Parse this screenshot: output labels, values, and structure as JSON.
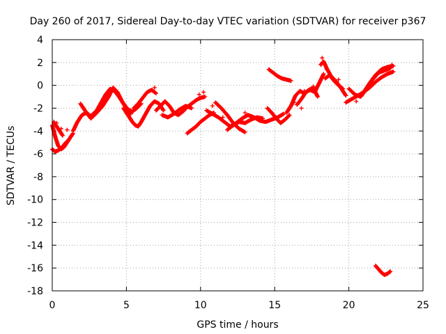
{
  "chart_data": {
    "type": "scatter",
    "title": "Day 260 of 2017, Sidereal Day-to-day VTEC variation (SDTVAR) for receiver p367",
    "xlabel": "GPS time / hours",
    "ylabel": "SDTVAR / TECUs",
    "xlim": [
      0,
      25
    ],
    "ylim": [
      -18,
      4
    ],
    "xticks": [
      0,
      5,
      10,
      15,
      20,
      25
    ],
    "yticks": [
      -18,
      -16,
      -14,
      -12,
      -10,
      -8,
      -6,
      -4,
      -2,
      0,
      2,
      4
    ],
    "grid": true,
    "marker": "+",
    "color": "#ff0000",
    "segments": [
      {
        "x": [
          0.0,
          0.2,
          0.4,
          0.6,
          0.8,
          1.0,
          1.2,
          1.4
        ],
        "y": [
          -3.5,
          -4.5,
          -5.3,
          -5.6,
          -5.4,
          -5.0,
          -4.6,
          -4.2
        ]
      },
      {
        "x": [
          0.0,
          0.2,
          0.4,
          0.6,
          0.8,
          1.0
        ],
        "y": [
          -5.6,
          -5.8,
          -5.7,
          -5.5,
          -5.2,
          -4.9
        ]
      },
      {
        "x": [
          0.1,
          0.3,
          0.5,
          0.7
        ],
        "y": [
          -3.2,
          -3.6,
          -4.0,
          -4.4
        ]
      },
      {
        "x": [
          1.4,
          1.7,
          2.0,
          2.3,
          2.6,
          3.0,
          3.3,
          3.6,
          3.9,
          4.2,
          4.5,
          4.8,
          5.1,
          5.4,
          5.7,
          6.0
        ],
        "y": [
          -4.0,
          -3.2,
          -2.6,
          -2.4,
          -2.7,
          -2.2,
          -1.5,
          -0.8,
          -0.3,
          -0.5,
          -1.0,
          -1.6,
          -2.1,
          -2.3,
          -2.0,
          -1.6
        ]
      },
      {
        "x": [
          1.9,
          2.2,
          2.6,
          3.0,
          3.4,
          3.8,
          4.1,
          4.4,
          4.7,
          5.0,
          5.3
        ],
        "y": [
          -1.6,
          -2.2,
          -2.9,
          -2.4,
          -1.8,
          -1.0,
          -0.2,
          -0.6,
          -1.4,
          -2.0,
          -2.5
        ]
      },
      {
        "x": [
          4.8,
          5.0,
          5.2,
          5.4,
          5.6,
          5.8,
          6.0,
          6.3,
          6.6,
          6.9,
          7.2,
          7.5
        ],
        "y": [
          -2.0,
          -2.4,
          -2.8,
          -3.2,
          -3.5,
          -3.6,
          -3.2,
          -2.5,
          -1.8,
          -1.4,
          -1.6,
          -2.2
        ]
      },
      {
        "x": [
          5.5,
          5.8,
          6.1,
          6.4,
          6.7,
          7.0
        ],
        "y": [
          -2.0,
          -1.6,
          -1.1,
          -0.6,
          -0.4,
          -0.7
        ]
      },
      {
        "x": [
          7.0,
          7.3,
          7.6,
          7.9,
          8.2,
          8.5,
          8.8,
          9.1,
          9.4,
          9.7,
          10.0,
          10.3
        ],
        "y": [
          -2.2,
          -1.8,
          -1.4,
          -1.8,
          -2.4,
          -2.6,
          -2.3,
          -1.9,
          -1.6,
          -1.3,
          -1.1,
          -1.0
        ]
      },
      {
        "x": [
          7.4,
          7.8,
          8.2,
          8.6,
          9.0,
          9.4
        ],
        "y": [
          -2.6,
          -2.8,
          -2.5,
          -2.1,
          -1.8,
          -2.0
        ]
      },
      {
        "x": [
          9.1,
          9.4,
          9.7,
          10.0,
          10.3,
          10.6,
          10.9
        ],
        "y": [
          -4.2,
          -3.9,
          -3.6,
          -3.2,
          -2.9,
          -2.6,
          -2.4
        ]
      },
      {
        "x": [
          10.4,
          10.8,
          11.2,
          11.6,
          12.0,
          12.4,
          12.8,
          13.2,
          13.6,
          14.0,
          14.4,
          14.8,
          15.2,
          15.6
        ],
        "y": [
          -2.2,
          -2.5,
          -2.8,
          -3.2,
          -3.6,
          -3.3,
          -2.9,
          -2.6,
          -2.8,
          -3.1,
          -3.2,
          -3.0,
          -2.8,
          -2.5
        ]
      },
      {
        "x": [
          11.0,
          11.4,
          11.8,
          12.2,
          12.6,
          13.0
        ],
        "y": [
          -1.5,
          -2.0,
          -2.6,
          -3.3,
          -3.8,
          -4.1
        ]
      },
      {
        "x": [
          11.8,
          12.2,
          12.6,
          13.0,
          13.4,
          13.8,
          14.2
        ],
        "y": [
          -3.9,
          -3.5,
          -3.2,
          -3.3,
          -3.0,
          -2.8,
          -2.9
        ]
      },
      {
        "x": [
          14.5,
          14.8,
          15.1,
          15.4,
          15.7,
          16.0
        ],
        "y": [
          -2.0,
          -2.4,
          -2.9,
          -3.3,
          -3.0,
          -2.6
        ]
      },
      {
        "x": [
          14.6,
          14.9,
          15.2,
          15.5,
          15.8,
          16.1
        ],
        "y": [
          1.4,
          1.1,
          0.8,
          0.6,
          0.5,
          0.4
        ]
      },
      {
        "x": [
          15.8,
          16.1,
          16.4,
          16.7,
          17.0,
          17.3,
          17.6,
          17.9
        ],
        "y": [
          -2.4,
          -1.8,
          -0.9,
          -0.5,
          -0.7,
          -0.4,
          -0.2,
          -1.0
        ]
      },
      {
        "x": [
          16.5,
          16.8,
          17.1,
          17.4,
          17.7,
          18.0,
          18.3
        ],
        "y": [
          -1.7,
          -1.2,
          -0.6,
          -0.4,
          -0.6,
          0.2,
          1.0
        ]
      },
      {
        "x": [
          18.1,
          18.3,
          18.5,
          18.8,
          19.1,
          19.4,
          19.6,
          19.8
        ],
        "y": [
          1.8,
          2.1,
          1.5,
          0.8,
          0.4,
          -0.1,
          -0.5,
          -0.9
        ]
      },
      {
        "x": [
          18.4,
          18.7,
          19.0,
          19.3,
          19.6
        ],
        "y": [
          0.6,
          0.9,
          0.4,
          0.0,
          -0.3
        ]
      },
      {
        "x": [
          19.8,
          20.2,
          20.6,
          21.0,
          21.4,
          21.8,
          22.2,
          22.6,
          23.0
        ],
        "y": [
          -1.5,
          -1.2,
          -0.9,
          -0.6,
          0.2,
          0.9,
          1.4,
          1.6,
          1.7
        ]
      },
      {
        "x": [
          20.0,
          20.4,
          20.8,
          21.2,
          21.6,
          22.0,
          22.4,
          22.8
        ],
        "y": [
          -0.3,
          -0.8,
          -1.0,
          -0.3,
          0.5,
          1.1,
          1.3,
          1.5
        ]
      },
      {
        "x": [
          21.0,
          21.4,
          21.8,
          22.2,
          22.6,
          23.0
        ],
        "y": [
          -0.6,
          -0.2,
          0.3,
          0.7,
          1.0,
          1.2
        ]
      },
      {
        "x": [
          21.8,
          22.0,
          22.2,
          22.4,
          22.6,
          22.8
        ],
        "y": [
          -15.8,
          -16.1,
          -16.4,
          -16.6,
          -16.5,
          -16.3
        ]
      }
    ],
    "points": [
      {
        "x": 0.6,
        "y": -3.8
      },
      {
        "x": 1.0,
        "y": -3.9
      },
      {
        "x": 0.3,
        "y": -3.3
      },
      {
        "x": 6.9,
        "y": -0.2
      },
      {
        "x": 9.9,
        "y": -0.8
      },
      {
        "x": 10.2,
        "y": -0.6
      },
      {
        "x": 10.8,
        "y": -1.8
      },
      {
        "x": 11.5,
        "y": -2.8
      },
      {
        "x": 13.0,
        "y": -2.4
      },
      {
        "x": 16.3,
        "y": -1.5
      },
      {
        "x": 17.6,
        "y": -0.1
      },
      {
        "x": 18.2,
        "y": 2.4
      },
      {
        "x": 18.5,
        "y": 1.4
      },
      {
        "x": 19.3,
        "y": 0.5
      },
      {
        "x": 20.5,
        "y": -1.4
      },
      {
        "x": 22.9,
        "y": 1.8
      },
      {
        "x": 17.0,
        "y": -0.5
      },
      {
        "x": 16.8,
        "y": -2.0
      }
    ]
  }
}
